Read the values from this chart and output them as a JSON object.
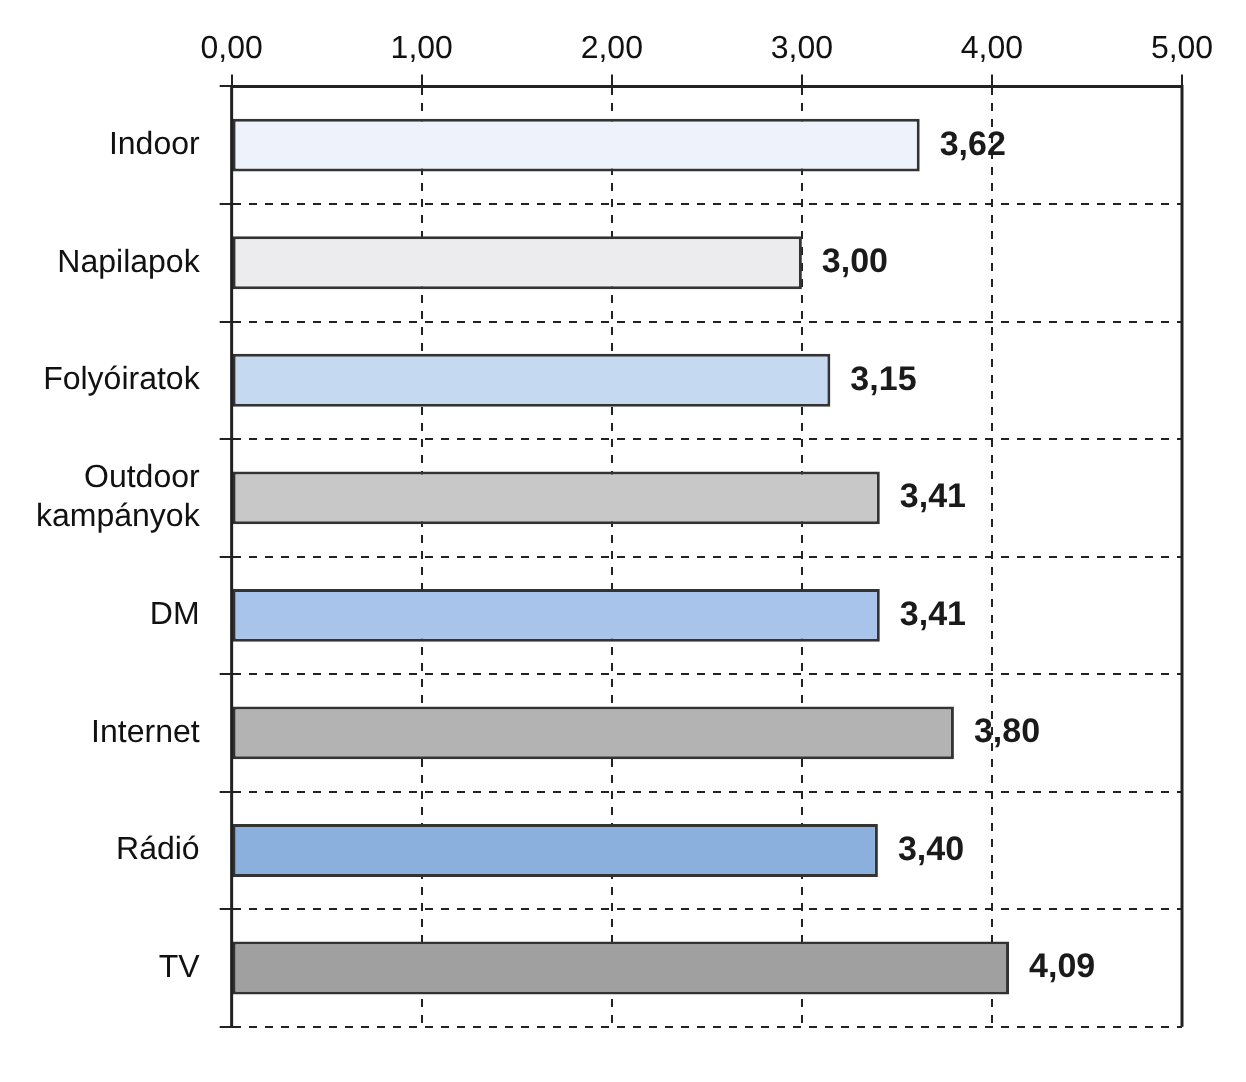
{
  "chart_data": {
    "type": "bar",
    "orientation": "horizontal",
    "categories": [
      "Indoor",
      "Napilapok",
      "Folyóiratok",
      "Outdoor\nkampányok",
      "DM",
      "Internet",
      "Rádió",
      "TV"
    ],
    "values": [
      3.62,
      3.0,
      3.15,
      3.41,
      3.41,
      3.8,
      3.4,
      4.09
    ],
    "value_labels": [
      "3,62",
      "3,00",
      "3,15",
      "3,41",
      "3,41",
      "3,80",
      "3,40",
      "4,09"
    ],
    "colors": [
      "#eef3fb",
      "#ececef",
      "#c5d9f1",
      "#c8c8c8",
      "#a8c4ea",
      "#b3b3b3",
      "#8cb0de",
      "#a0a0a0"
    ],
    "xlim": [
      0,
      5
    ],
    "xticks": [
      {
        "value": 0,
        "label": "0,00"
      },
      {
        "value": 1,
        "label": "1,00"
      },
      {
        "value": 2,
        "label": "2,00"
      },
      {
        "value": 3,
        "label": "3,00"
      },
      {
        "value": 4,
        "label": "4,00"
      },
      {
        "value": 5,
        "label": "5,00"
      }
    ],
    "grid": true,
    "legend": false
  }
}
